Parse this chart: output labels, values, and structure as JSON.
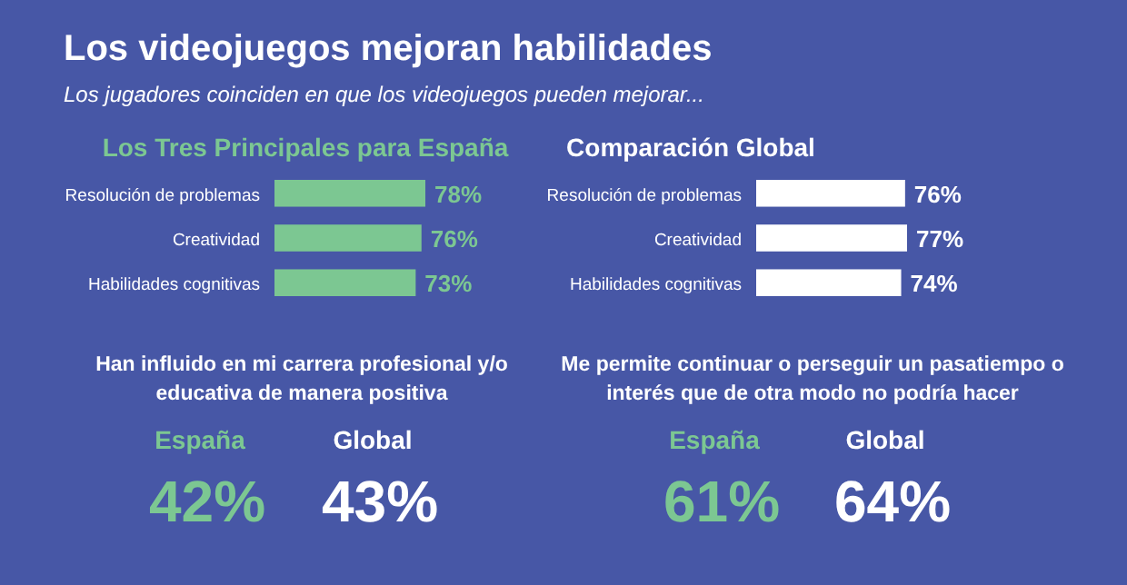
{
  "chart_data": [
    {
      "type": "other",
      "title": "Los videojuegos mejoran habilidades",
      "subtitle": "Los jugadores coinciden en que los videojuegos pueden mejorar..."
    },
    {
      "type": "bar",
      "orientation": "horizontal",
      "title": "Los Tres Principales para España",
      "categories": [
        "Resolución de problemas",
        "Creatividad",
        "Habilidades cognitivas"
      ],
      "values": [
        78,
        76,
        73
      ],
      "value_labels": [
        "78%",
        "76%",
        "73%"
      ],
      "color": "#7cc792",
      "tick_labels": "y"
    },
    {
      "type": "bar",
      "orientation": "horizontal",
      "title": "Comparación Global",
      "categories": [
        "Resolución de problemas",
        "Creatividad",
        "Habilidades cognitivas"
      ],
      "values": [
        76,
        77,
        74
      ],
      "value_labels": [
        "76%",
        "77%",
        "74%"
      ],
      "color": "#ffffff",
      "tick_labels": "y"
    },
    {
      "type": "other",
      "title": "Han influido en mi carrera profesional y/o educativa de manera positiva",
      "categories": [
        "España",
        "Global"
      ],
      "values": [
        42,
        43
      ],
      "value_labels": [
        "42%",
        "43%"
      ],
      "colors": [
        "#7cc792",
        "#ffffff"
      ]
    },
    {
      "type": "other",
      "title": "Me permite continuar o perseguir un pasatiempo o interés que de otra modo no podría hacer",
      "categories": [
        "España",
        "Global"
      ],
      "values": [
        61,
        64
      ],
      "value_labels": [
        "61%",
        "64%"
      ],
      "colors": [
        "#7cc792",
        "#ffffff"
      ]
    }
  ]
}
